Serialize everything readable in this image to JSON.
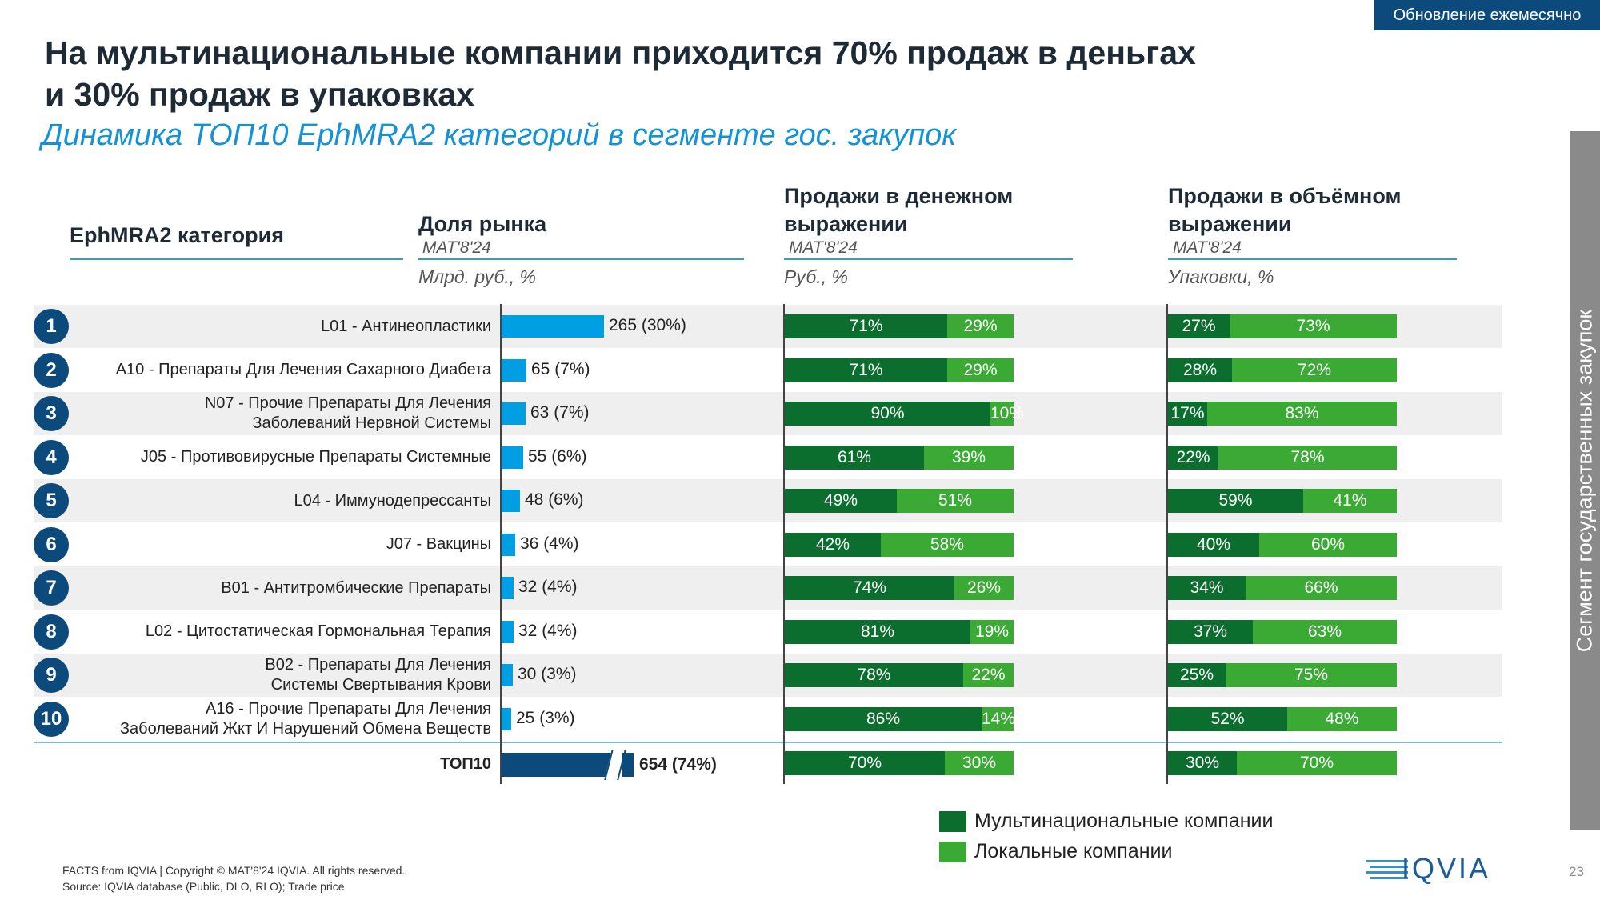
{
  "header": {
    "badge": "Обновление ежемесячно",
    "title_line1": "На мультинациональные компании приходится 70% продаж в деньгах",
    "title_line2": "и 30% продаж в упаковках",
    "subtitle": "Динамика ТОП10 EphMRA2 категорий в сегменте гос. закупок",
    "side_label": "Сегмент государственных закупок"
  },
  "columns": {
    "category": "EphMRA2 категория",
    "market_share": {
      "title": "Доля рынка",
      "period": "MAT'8'24",
      "unit": "Млрд. руб., %"
    },
    "money": {
      "title_line1": "Продажи в денежном",
      "title_line2": "выражении",
      "period": "MAT'8'24",
      "unit": "Руб., %"
    },
    "volume": {
      "title_line1": "Продажи в объёмном",
      "title_line2": "выражении",
      "period": "MAT'8'24",
      "unit": "Упаковки, %"
    }
  },
  "chart_data": {
    "type": "bar",
    "categories": [
      [
        "L01 - Антинеопластики"
      ],
      [
        "A10 - Препараты Для Лечения Сахарного Диабета"
      ],
      [
        "N07 - Прочие Препараты Для Лечения",
        "Заболеваний Нервной Системы"
      ],
      [
        "J05 - Противовирусные Препараты Системные"
      ],
      [
        "L04 - Иммунодепрессанты"
      ],
      [
        "J07 - Вакцины"
      ],
      [
        "B01 - Антитромбические Препараты"
      ],
      [
        "L02 - Цитостатическая Гормональная Терапия"
      ],
      [
        "B02 - Препараты Для Лечения",
        "Системы Свертывания Крови"
      ],
      [
        "A16 - Прочие Препараты Для Лечения",
        "Заболеваний Жкт И Нарушений Обмена Веществ"
      ]
    ],
    "ranks": [
      "1",
      "2",
      "3",
      "4",
      "5",
      "6",
      "7",
      "8",
      "9",
      "10"
    ],
    "market_value": [
      265,
      65,
      63,
      55,
      48,
      36,
      32,
      32,
      30,
      25
    ],
    "market_share_label": [
      "265 (30%)",
      "65 (7%)",
      "63 (7%)",
      "55 (6%)",
      "48 (6%)",
      "36 (4%)",
      "32 (4%)",
      "32 (4%)",
      "30 (3%)",
      "25 (3%)"
    ],
    "money_multinational": [
      71,
      71,
      90,
      61,
      49,
      42,
      74,
      81,
      78,
      86
    ],
    "volume_multinational": [
      27,
      28,
      17,
      22,
      59,
      40,
      34,
      37,
      25,
      52
    ],
    "total": {
      "label": "ТОП10",
      "value": 654,
      "value_label": "654 (74%)",
      "money_multinational": 70,
      "volume_multinational": 30
    },
    "series": [
      {
        "name": "Мультинациональные компании",
        "color": "#0b6e2e"
      },
      {
        "name": "Локальные компании",
        "color": "#3aaa35"
      }
    ]
  },
  "footer": {
    "line1": "FACTS from IQVIA | Copyright © MAT'8'24 IQVIA. All rights reserved.",
    "line2": "Source: IQVIA database (Public, DLO, RLO); Trade price",
    "logo_text": "IQVIA",
    "page": "23"
  }
}
